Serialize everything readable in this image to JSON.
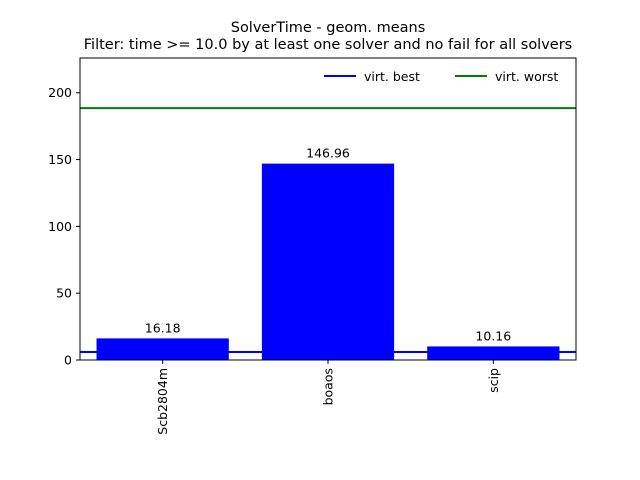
{
  "chart_data": {
    "type": "bar",
    "title": "SolverTime - geom. means",
    "subtitle": "Filter: time >= 10.0 by at least one solver and no fail for all solvers",
    "categories": [
      "Scb2804m",
      "boaos",
      "scip"
    ],
    "values": [
      16.18,
      146.96,
      10.16
    ],
    "value_labels": [
      "16.18",
      "146.96",
      "10.16"
    ],
    "ylim": [
      0,
      226
    ],
    "yticks": [
      0,
      50,
      100,
      150,
      200
    ],
    "ytick_labels": [
      "0",
      "50",
      "100",
      "150",
      "200"
    ],
    "xlabel": "",
    "ylabel": "",
    "bar_color": "#0000ff",
    "reference_lines": [
      {
        "name": "virt. best",
        "value": 6.0,
        "color": "#0000ff"
      },
      {
        "name": "virt. worst",
        "value": 188.5,
        "color": "#008000"
      }
    ],
    "legend_position": "top-right",
    "grid": false
  }
}
